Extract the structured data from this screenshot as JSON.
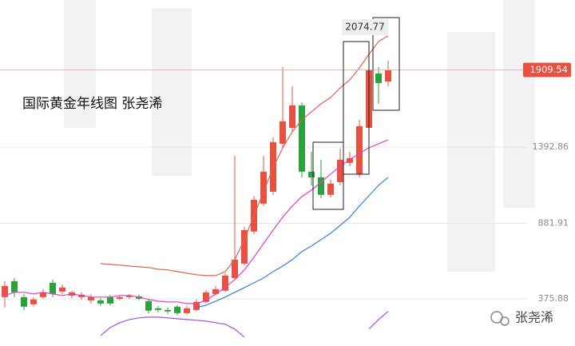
{
  "chart_data": {
    "type": "candlestick",
    "title": "国际黄金年线图  张尧浠",
    "watermark": "张尧浠",
    "categories": [
      null,
      null,
      null,
      null,
      null,
      null,
      null,
      null,
      null,
      null,
      null,
      null,
      null,
      null,
      null,
      null,
      null,
      null,
      null,
      null,
      null,
      null,
      null,
      null,
      null,
      null,
      null,
      null,
      null,
      null,
      null,
      null,
      null,
      null,
      null,
      null,
      null,
      null,
      null,
      null,
      null
    ],
    "open": [
      388,
      495,
      388,
      340,
      388,
      484,
      425,
      398,
      388,
      366,
      366,
      388,
      377,
      388,
      393,
      361,
      313,
      302,
      324,
      281,
      302,
      356,
      409,
      431,
      516,
      612,
      827,
      1014,
      1094,
      1415,
      1522,
      1672,
      1228,
      1190,
      1073,
      1158,
      1287,
      1212,
      1522,
      1886,
      1832
    ],
    "high": [
      495,
      516,
      409,
      388,
      441,
      506,
      473,
      431,
      420,
      409,
      382,
      404,
      398,
      409,
      404,
      377,
      329,
      318,
      334,
      329,
      372,
      436,
      463,
      548,
      1335,
      859,
      1067,
      1335,
      1458,
      1929,
      1800,
      1693,
      1362,
      1308,
      1174,
      1383,
      1362,
      1576,
      2074.77,
      1929,
      1971
    ],
    "low": [
      318,
      388,
      302,
      324,
      377,
      388,
      409,
      382,
      372,
      345,
      329,
      334,
      366,
      377,
      366,
      281,
      286,
      276,
      265,
      270,
      292,
      345,
      398,
      420,
      506,
      602,
      810,
      998,
      1073,
      1388,
      1495,
      1190,
      1137,
      1051,
      1057,
      1137,
      1265,
      1190,
      1511,
      1683,
      1800
    ],
    "close": [
      463,
      420,
      324,
      372,
      420,
      409,
      452,
      420,
      404,
      388,
      345,
      345,
      388,
      398,
      377,
      297,
      302,
      292,
      281,
      313,
      356,
      420,
      441,
      532,
      639,
      837,
      1040,
      1228,
      1426,
      1565,
      1672,
      1228,
      1190,
      1073,
      1148,
      1308,
      1319,
      1533,
      1907,
      1822,
      1909.54
    ],
    "up_color": "#e8503f",
    "down_color": "#2aa13a",
    "lines": [
      {
        "color": "#e06050",
        "values": [
          null,
          null,
          null,
          null,
          null,
          null,
          null,
          null,
          null,
          null,
          612,
          607,
          602,
          596,
          591,
          586,
          575,
          570,
          559,
          548,
          538,
          532,
          532,
          559,
          639,
          773,
          934,
          1094,
          1254,
          1388,
          1495,
          1576,
          1629,
          1683,
          1725,
          1790,
          1843,
          1923,
          2014,
          2100,
          2137
        ]
      },
      {
        "color": "#e040c0",
        "values": [
          399,
          420,
          420,
          409,
          420,
          409,
          399,
          409,
          399,
          388,
          388,
          388,
          399,
          399,
          388,
          372,
          361,
          356,
          356,
          345,
          345,
          366,
          409,
          452,
          506,
          570,
          655,
          746,
          837,
          923,
          998,
          1062,
          1105,
          1158,
          1212,
          1265,
          1308,
          1351,
          1388,
          1415,
          1442
        ]
      },
      {
        "color": "#3a7fd8",
        "values": [
          null,
          null,
          null,
          null,
          null,
          null,
          null,
          null,
          null,
          null,
          null,
          null,
          null,
          null,
          null,
          null,
          null,
          null,
          null,
          null,
          318,
          334,
          361,
          388,
          420,
          452,
          484,
          516,
          559,
          596,
          639,
          693,
          730,
          773,
          816,
          869,
          923,
          998,
          1067,
          1137,
          1190
        ]
      },
      {
        "color": "#a050e0",
        "values": [
          null,
          null,
          null,
          null,
          null,
          null,
          null,
          null,
          null,
          null,
          131,
          184,
          217,
          238,
          249,
          254,
          254,
          249,
          243,
          238,
          233,
          227,
          217,
          206,
          174,
          120,
          null,
          null,
          null,
          null,
          null,
          null,
          null,
          null,
          null,
          null,
          null,
          null,
          174,
          238,
          292
        ]
      }
    ],
    "ylim": [
      82,
      2378
    ],
    "yticks": [
      375.88,
      881.91,
      1392.86
    ],
    "grid": true
  }
}
